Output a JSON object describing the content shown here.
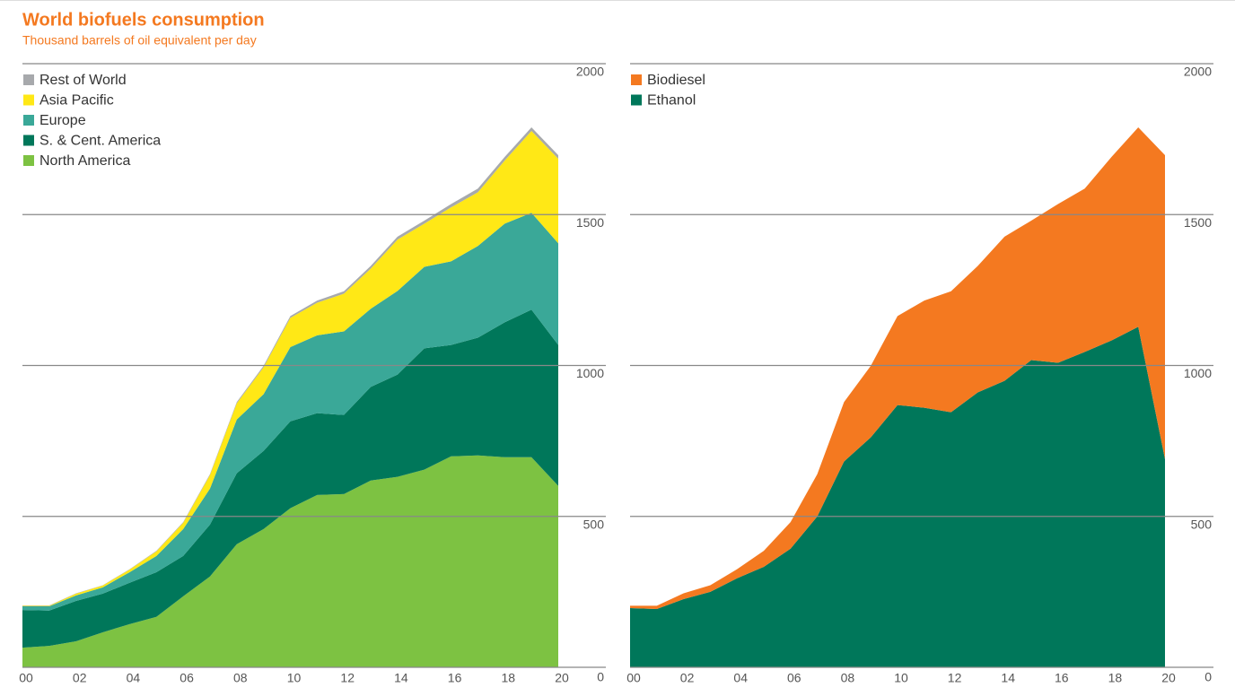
{
  "chart_data": [
    {
      "type": "stacked-area",
      "title": "World biofuels consumption",
      "subtitle": "Thousand barrels of oil equivalent per day",
      "x": [
        2000,
        2001,
        2002,
        2003,
        2004,
        2005,
        2006,
        2007,
        2008,
        2009,
        2010,
        2011,
        2012,
        2013,
        2014,
        2015,
        2016,
        2017,
        2018,
        2019,
        2020
      ],
      "series": [
        {
          "name": "North America",
          "color": "#7dc242",
          "values": [
            65,
            71,
            86,
            116,
            143,
            167,
            235,
            301,
            408,
            458,
            527,
            571,
            574,
            619,
            631,
            655,
            699,
            702,
            696,
            696,
            601
          ]
        },
        {
          "name": "S. & Cent. America",
          "color": "#00775a",
          "values": [
            125,
            117,
            134,
            128,
            137,
            148,
            134,
            172,
            235,
            259,
            288,
            271,
            262,
            310,
            339,
            402,
            369,
            390,
            447,
            489,
            467
          ]
        },
        {
          "name": "Europe",
          "color": "#3aa898",
          "values": [
            12,
            14,
            18,
            21,
            35,
            54,
            89,
            119,
            178,
            188,
            246,
            258,
            277,
            259,
            277,
            270,
            277,
            304,
            327,
            321,
            337
          ]
        },
        {
          "name": "Asia Pacific",
          "color": "#ffe816",
          "values": [
            2,
            2,
            6,
            6,
            9,
            15,
            21,
            45,
            54,
            89,
            97,
            108,
            125,
            133,
            170,
            143,
            179,
            178,
            209,
            271,
            280
          ]
        },
        {
          "name": "Rest of World",
          "color": "#a7a9ac",
          "values": [
            1,
            1,
            1,
            1,
            1,
            2,
            2,
            3,
            4,
            5,
            6,
            7,
            8,
            9,
            10,
            10,
            11,
            12,
            12,
            12,
            12
          ]
        }
      ],
      "xlim": [
        2000,
        2020
      ],
      "xticks": [
        {
          "value": 2000,
          "label": "00"
        },
        {
          "value": 2002,
          "label": "02"
        },
        {
          "value": 2004,
          "label": "04"
        },
        {
          "value": 2006,
          "label": "06"
        },
        {
          "value": 2008,
          "label": "08"
        },
        {
          "value": 2010,
          "label": "10"
        },
        {
          "value": 2012,
          "label": "12"
        },
        {
          "value": 2014,
          "label": "14"
        },
        {
          "value": 2016,
          "label": "16"
        },
        {
          "value": 2018,
          "label": "18"
        },
        {
          "value": 2020,
          "label": "20"
        }
      ],
      "ylim": [
        0,
        2000
      ],
      "yticks": [
        0,
        500,
        1000,
        1500,
        2000
      ],
      "grid": true,
      "legend": "top-left"
    },
    {
      "type": "stacked-area",
      "x": [
        2000,
        2001,
        2002,
        2003,
        2004,
        2005,
        2006,
        2007,
        2008,
        2009,
        2010,
        2011,
        2012,
        2013,
        2014,
        2015,
        2016,
        2017,
        2018,
        2019,
        2020
      ],
      "series": [
        {
          "name": "Ethanol",
          "color": "#00775a",
          "values": [
            196,
            193,
            226,
            250,
            295,
            333,
            393,
            500,
            682,
            762,
            869,
            860,
            845,
            911,
            949,
            1018,
            1009,
            1045,
            1083,
            1128,
            690
          ]
        },
        {
          "name": "Biodiesel",
          "color": "#f47920",
          "values": [
            8,
            11,
            19,
            22,
            30,
            53,
            88,
            140,
            197,
            237,
            295,
            355,
            401,
            419,
            478,
            462,
            526,
            541,
            608,
            661,
            1007
          ]
        }
      ],
      "xlim": [
        2000,
        2020
      ],
      "xticks": [
        {
          "value": 2000,
          "label": "00"
        },
        {
          "value": 2002,
          "label": "02"
        },
        {
          "value": 2004,
          "label": "04"
        },
        {
          "value": 2006,
          "label": "06"
        },
        {
          "value": 2008,
          "label": "08"
        },
        {
          "value": 2010,
          "label": "10"
        },
        {
          "value": 2012,
          "label": "12"
        },
        {
          "value": 2014,
          "label": "14"
        },
        {
          "value": 2016,
          "label": "16"
        },
        {
          "value": 2018,
          "label": "18"
        },
        {
          "value": 2020,
          "label": "20"
        }
      ],
      "ylim": [
        0,
        2000
      ],
      "yticks": [
        0,
        500,
        1000,
        1500,
        2000
      ],
      "grid": true,
      "legend": "top-left"
    }
  ]
}
